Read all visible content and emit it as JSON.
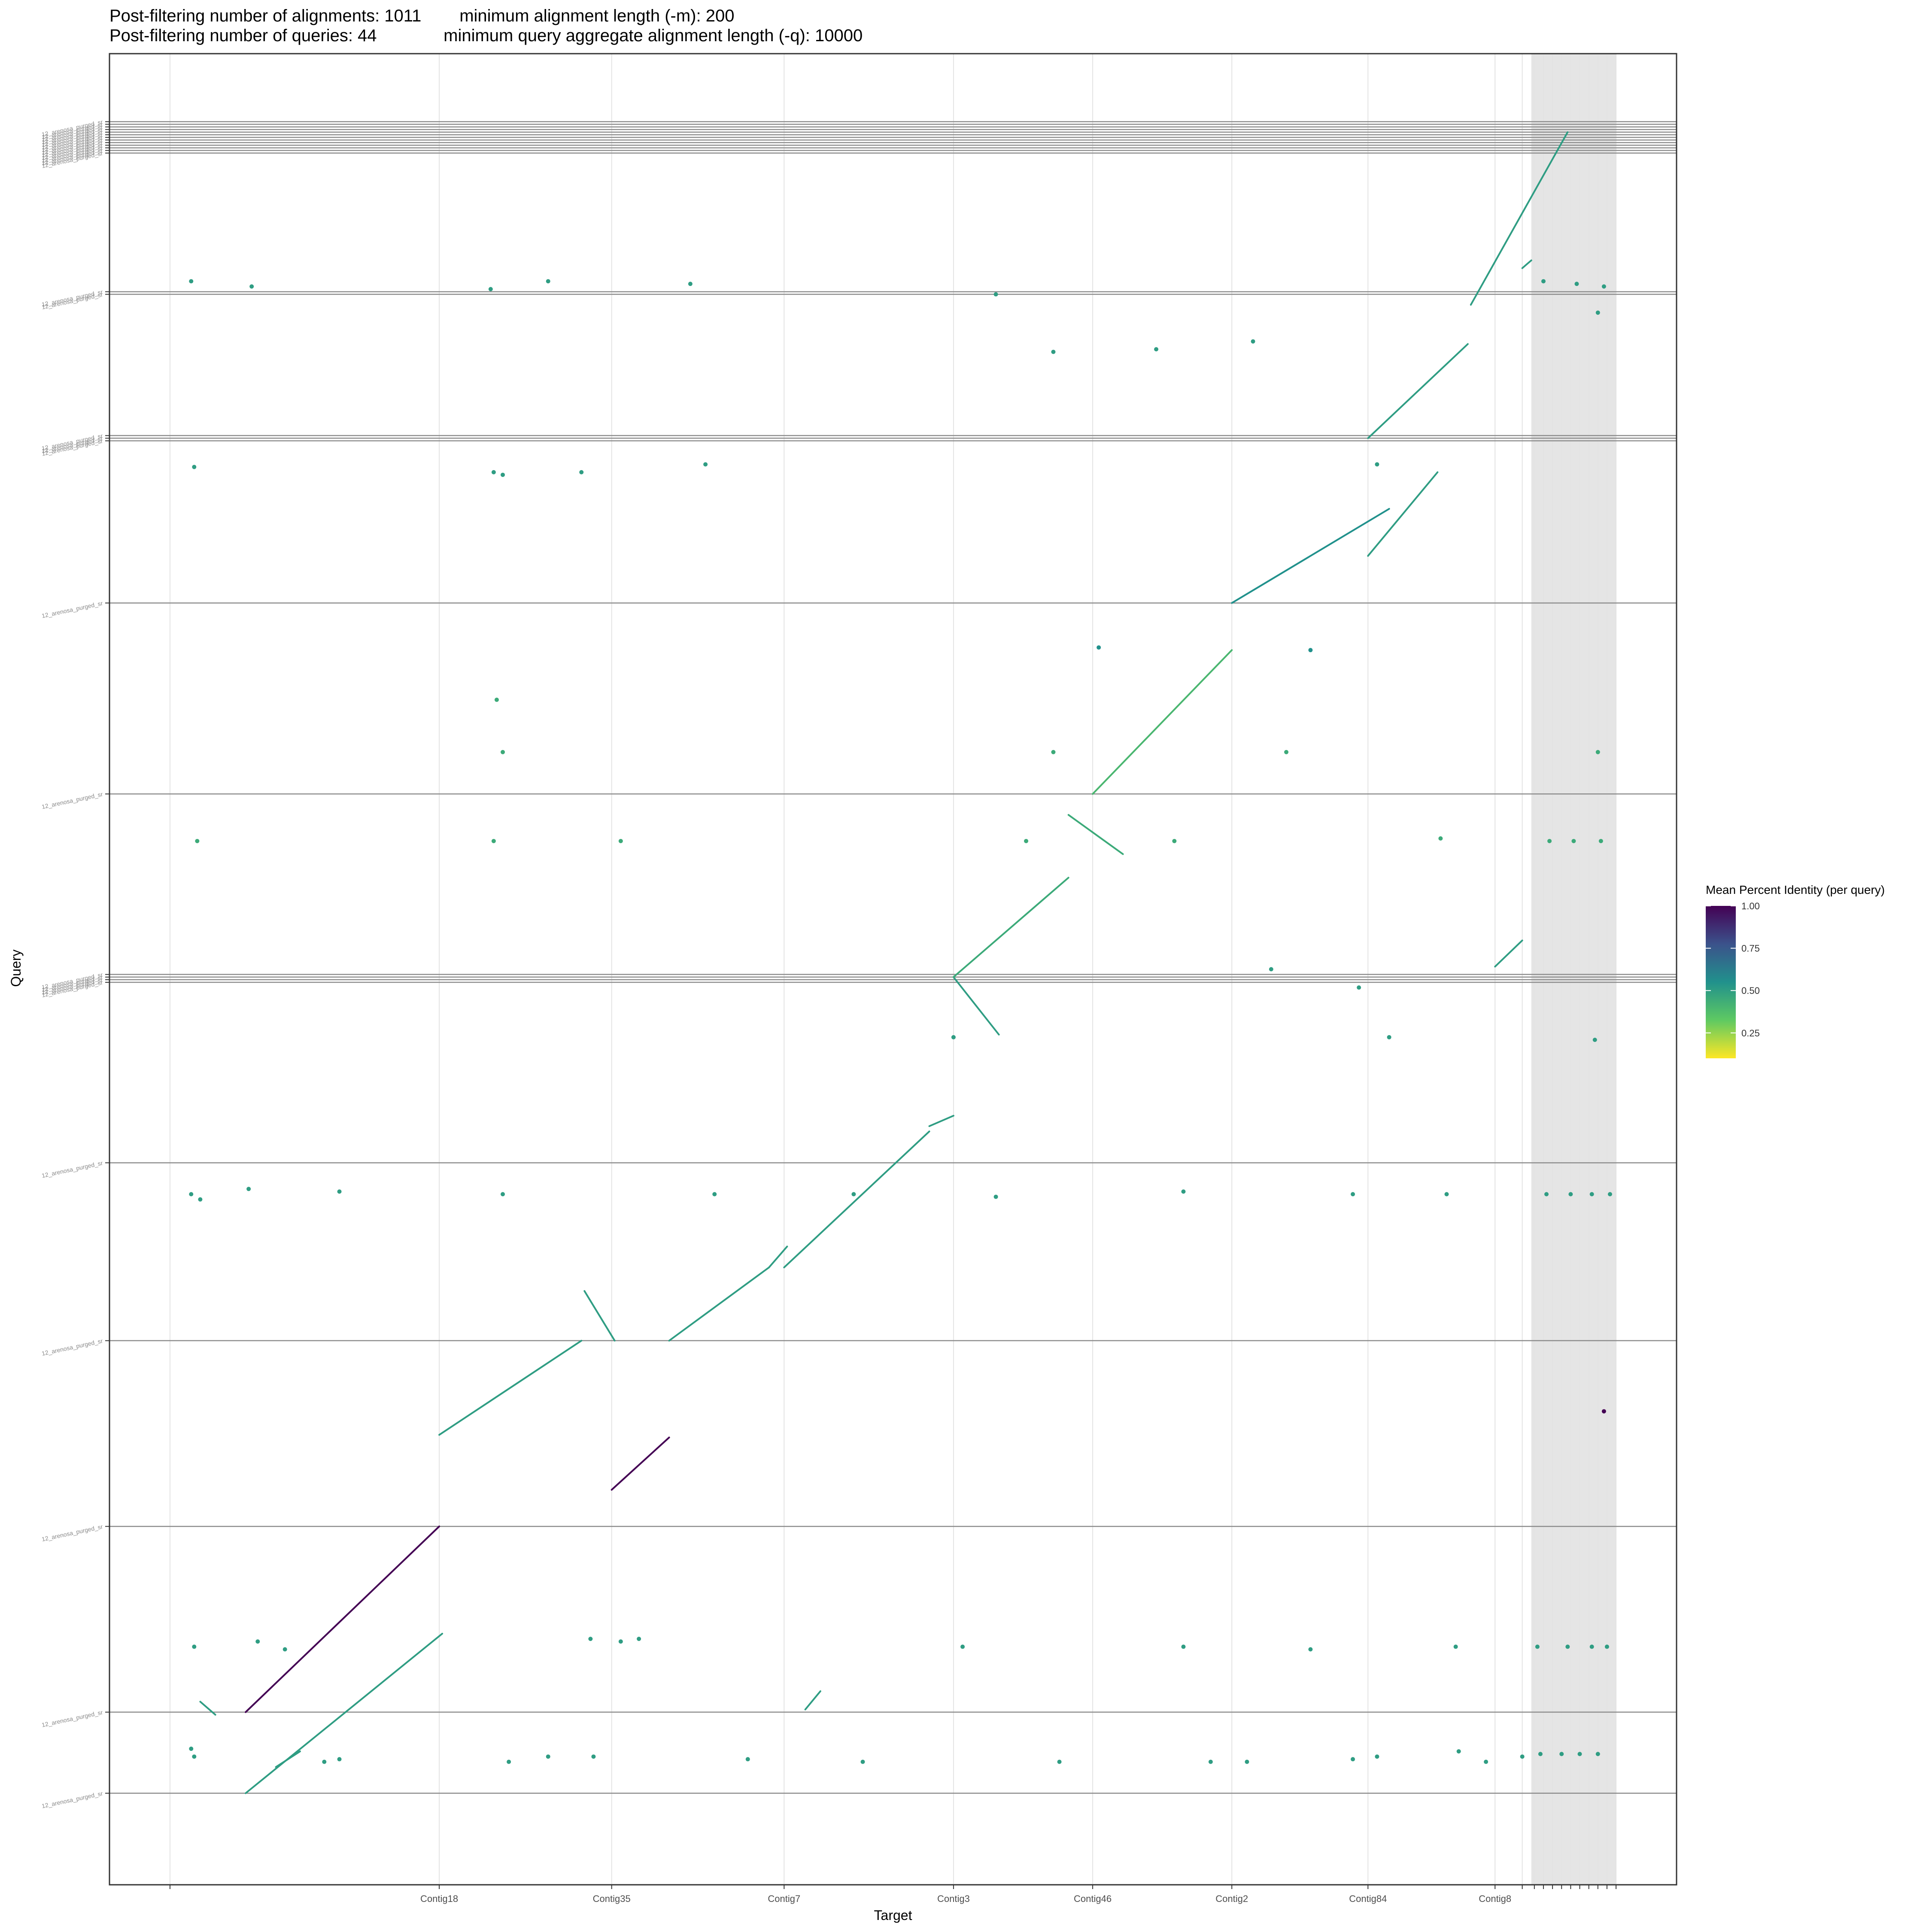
{
  "header": {
    "title_line1": "Post-filtering number of alignments: 1011        minimum alignment length (-m): 200",
    "title_line2": "Post-filtering number of queries: 44              minimum query aggregate alignment length (-q): 10000"
  },
  "colors": {
    "panel_border": "#333333",
    "query_boundary": "#8c8c8c",
    "target_grid": "#e3e3e3",
    "unplaced_band": "#e5e5e5",
    "viridis": [
      "#fde725",
      "#5ec962",
      "#21918c",
      "#3b528b",
      "#440154"
    ]
  },
  "chart_data": {
    "type": "scatter",
    "subtype": "dot-plot",
    "title": "Post-filtering number of alignments: 1011 minimum alignment length (-m): 200 / Post-filtering number of queries: 44 minimum query aggregate alignment length (-q): 10000",
    "xlabel": "Target",
    "ylabel": "Query",
    "x_tick_labels": [
      "Contig18",
      "Contig35",
      "Contig7",
      "Contig3",
      "Contig46",
      "Contig2",
      "Contig84",
      "Contig8"
    ],
    "x_target_boundaries": [
      0,
      8.9,
      14.6,
      20.3,
      25.9,
      30.5,
      35.1,
      39.6,
      43.8,
      44.7,
      45.1,
      45.4,
      45.7,
      46.0,
      46.3,
      46.6,
      46.9,
      47.2,
      47.5,
      47.8
    ],
    "x_unplaced_region": [
      45.0,
      47.8
    ],
    "x_range": [
      -2.0,
      49.8
    ],
    "y_query_label": "12_arenosa_purged_sr",
    "y_query_boundaries": [
      0,
      3.1,
      10.2,
      17.3,
      24.1,
      31.0,
      31.1,
      31.2,
      31.3,
      38.2,
      45.5,
      51.7,
      51.8,
      51.9,
      57.3,
      57.4,
      62.7,
      62.8,
      62.9,
      63.0,
      63.1,
      63.2,
      63.3,
      63.4,
      63.5,
      63.6,
      63.7,
      63.8,
      63.9
    ],
    "y_range": [
      -3.5,
      66.5
    ],
    "legend": {
      "title": "Mean Percent Identity (per query)",
      "ticks": [
        1.0,
        0.75,
        0.5,
        0.25
      ],
      "tick_labels": [
        "1.00",
        "0.75",
        "0.50",
        "0.25"
      ],
      "range": [
        0.1,
        1.0
      ],
      "position": "right",
      "scale": "viridis"
    },
    "segments": [
      {
        "x": [
          2.5,
          9.0
        ],
        "y": [
          0.0,
          6.1
        ],
        "identity": 0.5
      },
      {
        "x": [
          3.5,
          4.3
        ],
        "y": [
          1.0,
          1.6
        ],
        "identity": 0.5
      },
      {
        "x": [
          1.0,
          1.5
        ],
        "y": [
          3.5,
          3.0
        ],
        "identity": 0.5
      },
      {
        "x": [
          21.0,
          21.5
        ],
        "y": [
          3.2,
          3.9
        ],
        "identity": 0.5
      },
      {
        "x": [
          2.5,
          8.9
        ],
        "y": [
          3.1,
          10.2
        ],
        "identity": 1.0
      },
      {
        "x": [
          14.6,
          16.5
        ],
        "y": [
          11.6,
          13.6
        ],
        "identity": 1.0
      },
      {
        "x": [
          8.9,
          13.6
        ],
        "y": [
          13.7,
          17.3
        ],
        "identity": 0.5
      },
      {
        "x": [
          14.7,
          13.7
        ],
        "y": [
          17.3,
          19.2
        ],
        "identity": 0.5
      },
      {
        "x": [
          16.5,
          19.8
        ],
        "y": [
          17.3,
          20.1
        ],
        "identity": 0.5
      },
      {
        "x": [
          19.8,
          20.4
        ],
        "y": [
          20.1,
          20.9
        ],
        "identity": 0.5
      },
      {
        "x": [
          20.3,
          25.1
        ],
        "y": [
          20.1,
          25.3
        ],
        "identity": 0.5
      },
      {
        "x": [
          25.1,
          25.9
        ],
        "y": [
          25.5,
          25.9
        ],
        "identity": 0.5
      },
      {
        "x": [
          25.9,
          27.4
        ],
        "y": [
          31.2,
          29.0
        ],
        "identity": 0.5
      },
      {
        "x": [
          25.9,
          29.7
        ],
        "y": [
          31.2,
          35.0
        ],
        "identity": 0.45
      },
      {
        "x": [
          29.7,
          31.5
        ],
        "y": [
          37.4,
          35.9
        ],
        "identity": 0.45
      },
      {
        "x": [
          30.5,
          35.1
        ],
        "y": [
          38.2,
          43.7
        ],
        "identity": 0.4
      },
      {
        "x": [
          35.1,
          40.3
        ],
        "y": [
          45.5,
          49.1
        ],
        "identity": 0.55
      },
      {
        "x": [
          39.6,
          41.9
        ],
        "y": [
          47.3,
          50.5
        ],
        "identity": 0.5
      },
      {
        "x": [
          39.6,
          42.9
        ],
        "y": [
          51.8,
          55.4
        ],
        "identity": 0.5
      },
      {
        "x": [
          43.0,
          46.2
        ],
        "y": [
          56.9,
          63.5
        ],
        "identity": 0.5
      },
      {
        "x": [
          43.8,
          44.7
        ],
        "y": [
          31.6,
          32.6
        ],
        "identity": 0.5
      },
      {
        "x": [
          44.7,
          45.0
        ],
        "y": [
          58.3,
          58.6
        ],
        "identity": 0.5
      }
    ],
    "points": [
      {
        "x": 0.8,
        "y": 1.4,
        "identity": 0.5
      },
      {
        "x": 0.7,
        "y": 1.7,
        "identity": 0.5
      },
      {
        "x": 5.6,
        "y": 1.3,
        "identity": 0.5
      },
      {
        "x": 5.1,
        "y": 1.2,
        "identity": 0.5
      },
      {
        "x": 14.0,
        "y": 1.4,
        "identity": 0.5
      },
      {
        "x": 19.1,
        "y": 1.3,
        "identity": 0.5
      },
      {
        "x": 22.9,
        "y": 1.2,
        "identity": 0.5
      },
      {
        "x": 29.4,
        "y": 1.2,
        "identity": 0.5
      },
      {
        "x": 34.4,
        "y": 1.2,
        "identity": 0.5
      },
      {
        "x": 35.6,
        "y": 1.2,
        "identity": 0.5
      },
      {
        "x": 39.1,
        "y": 1.3,
        "identity": 0.5
      },
      {
        "x": 39.9,
        "y": 1.4,
        "identity": 0.5
      },
      {
        "x": 42.6,
        "y": 1.6,
        "identity": 0.5
      },
      {
        "x": 43.5,
        "y": 1.2,
        "identity": 0.5
      },
      {
        "x": 44.7,
        "y": 1.4,
        "identity": 0.5
      },
      {
        "x": 45.3,
        "y": 1.5,
        "identity": 0.5
      },
      {
        "x": 46.0,
        "y": 1.5,
        "identity": 0.5
      },
      {
        "x": 46.6,
        "y": 1.5,
        "identity": 0.5
      },
      {
        "x": 47.2,
        "y": 1.5,
        "identity": 0.5
      },
      {
        "x": 11.2,
        "y": 1.2,
        "identity": 0.5
      },
      {
        "x": 12.5,
        "y": 1.4,
        "identity": 0.5
      },
      {
        "x": 47.4,
        "y": 14.6,
        "identity": 1.0
      },
      {
        "x": 0.8,
        "y": 5.6,
        "identity": 0.5
      },
      {
        "x": 2.9,
        "y": 5.8,
        "identity": 0.5
      },
      {
        "x": 3.8,
        "y": 5.5,
        "identity": 0.5
      },
      {
        "x": 14.9,
        "y": 5.8,
        "identity": 0.5
      },
      {
        "x": 13.9,
        "y": 5.9,
        "identity": 0.5
      },
      {
        "x": 15.5,
        "y": 5.9,
        "identity": 0.5
      },
      {
        "x": 26.2,
        "y": 5.6,
        "identity": 0.5
      },
      {
        "x": 33.5,
        "y": 5.6,
        "identity": 0.5
      },
      {
        "x": 37.7,
        "y": 5.5,
        "identity": 0.5
      },
      {
        "x": 42.5,
        "y": 5.6,
        "identity": 0.5
      },
      {
        "x": 45.2,
        "y": 5.6,
        "identity": 0.5
      },
      {
        "x": 46.2,
        "y": 5.6,
        "identity": 0.5
      },
      {
        "x": 47.0,
        "y": 5.6,
        "identity": 0.5
      },
      {
        "x": 47.5,
        "y": 5.6,
        "identity": 0.5
      },
      {
        "x": 25.9,
        "y": 28.9,
        "identity": 0.5
      },
      {
        "x": 40.3,
        "y": 28.9,
        "identity": 0.5
      },
      {
        "x": 47.1,
        "y": 28.8,
        "identity": 0.5
      },
      {
        "x": 36.4,
        "y": 31.5,
        "identity": 0.5
      },
      {
        "x": 39.3,
        "y": 30.8,
        "identity": 0.5
      },
      {
        "x": 1.0,
        "y": 22.7,
        "identity": 0.5
      },
      {
        "x": 0.7,
        "y": 22.9,
        "identity": 0.5
      },
      {
        "x": 2.6,
        "y": 23.1,
        "identity": 0.5
      },
      {
        "x": 5.6,
        "y": 23.0,
        "identity": 0.5
      },
      {
        "x": 11.0,
        "y": 22.9,
        "identity": 0.5
      },
      {
        "x": 18.0,
        "y": 22.9,
        "identity": 0.5
      },
      {
        "x": 22.6,
        "y": 22.9,
        "identity": 0.5
      },
      {
        "x": 27.3,
        "y": 22.8,
        "identity": 0.5
      },
      {
        "x": 33.5,
        "y": 23.0,
        "identity": 0.5
      },
      {
        "x": 39.1,
        "y": 22.9,
        "identity": 0.5
      },
      {
        "x": 42.2,
        "y": 22.9,
        "identity": 0.5
      },
      {
        "x": 45.5,
        "y": 22.9,
        "identity": 0.5
      },
      {
        "x": 46.3,
        "y": 22.9,
        "identity": 0.5
      },
      {
        "x": 47.0,
        "y": 22.9,
        "identity": 0.5
      },
      {
        "x": 47.6,
        "y": 22.9,
        "identity": 0.5
      },
      {
        "x": 0.9,
        "y": 36.4,
        "identity": 0.45
      },
      {
        "x": 10.7,
        "y": 36.4,
        "identity": 0.45
      },
      {
        "x": 14.9,
        "y": 36.4,
        "identity": 0.45
      },
      {
        "x": 28.3,
        "y": 36.4,
        "identity": 0.45
      },
      {
        "x": 33.2,
        "y": 36.4,
        "identity": 0.45
      },
      {
        "x": 42.0,
        "y": 36.5,
        "identity": 0.45
      },
      {
        "x": 45.6,
        "y": 36.4,
        "identity": 0.45
      },
      {
        "x": 46.4,
        "y": 36.4,
        "identity": 0.45
      },
      {
        "x": 47.3,
        "y": 36.4,
        "identity": 0.45
      },
      {
        "x": 10.8,
        "y": 41.8,
        "identity": 0.45
      },
      {
        "x": 11.0,
        "y": 39.8,
        "identity": 0.45
      },
      {
        "x": 29.2,
        "y": 39.8,
        "identity": 0.45
      },
      {
        "x": 36.9,
        "y": 39.8,
        "identity": 0.45
      },
      {
        "x": 47.2,
        "y": 39.8,
        "identity": 0.45
      },
      {
        "x": 30.7,
        "y": 43.8,
        "identity": 0.55
      },
      {
        "x": 37.7,
        "y": 43.7,
        "identity": 0.55
      },
      {
        "x": 0.8,
        "y": 50.7,
        "identity": 0.5
      },
      {
        "x": 10.7,
        "y": 50.5,
        "identity": 0.5
      },
      {
        "x": 11.0,
        "y": 50.4,
        "identity": 0.5
      },
      {
        "x": 13.6,
        "y": 50.5,
        "identity": 0.5
      },
      {
        "x": 17.7,
        "y": 50.8,
        "identity": 0.5
      },
      {
        "x": 39.9,
        "y": 50.8,
        "identity": 0.5
      },
      {
        "x": 29.2,
        "y": 55.1,
        "identity": 0.5
      },
      {
        "x": 32.6,
        "y": 55.2,
        "identity": 0.5
      },
      {
        "x": 35.8,
        "y": 55.5,
        "identity": 0.5
      },
      {
        "x": 47.2,
        "y": 56.6,
        "identity": 0.5
      },
      {
        "x": 0.7,
        "y": 57.8,
        "identity": 0.5
      },
      {
        "x": 2.7,
        "y": 57.6,
        "identity": 0.5
      },
      {
        "x": 10.6,
        "y": 57.5,
        "identity": 0.5
      },
      {
        "x": 12.5,
        "y": 57.8,
        "identity": 0.5
      },
      {
        "x": 17.2,
        "y": 57.7,
        "identity": 0.5
      },
      {
        "x": 27.3,
        "y": 57.3,
        "identity": 0.5
      },
      {
        "x": 45.4,
        "y": 57.8,
        "identity": 0.5
      },
      {
        "x": 46.5,
        "y": 57.7,
        "identity": 0.5
      },
      {
        "x": 47.4,
        "y": 57.6,
        "identity": 0.5
      }
    ]
  }
}
